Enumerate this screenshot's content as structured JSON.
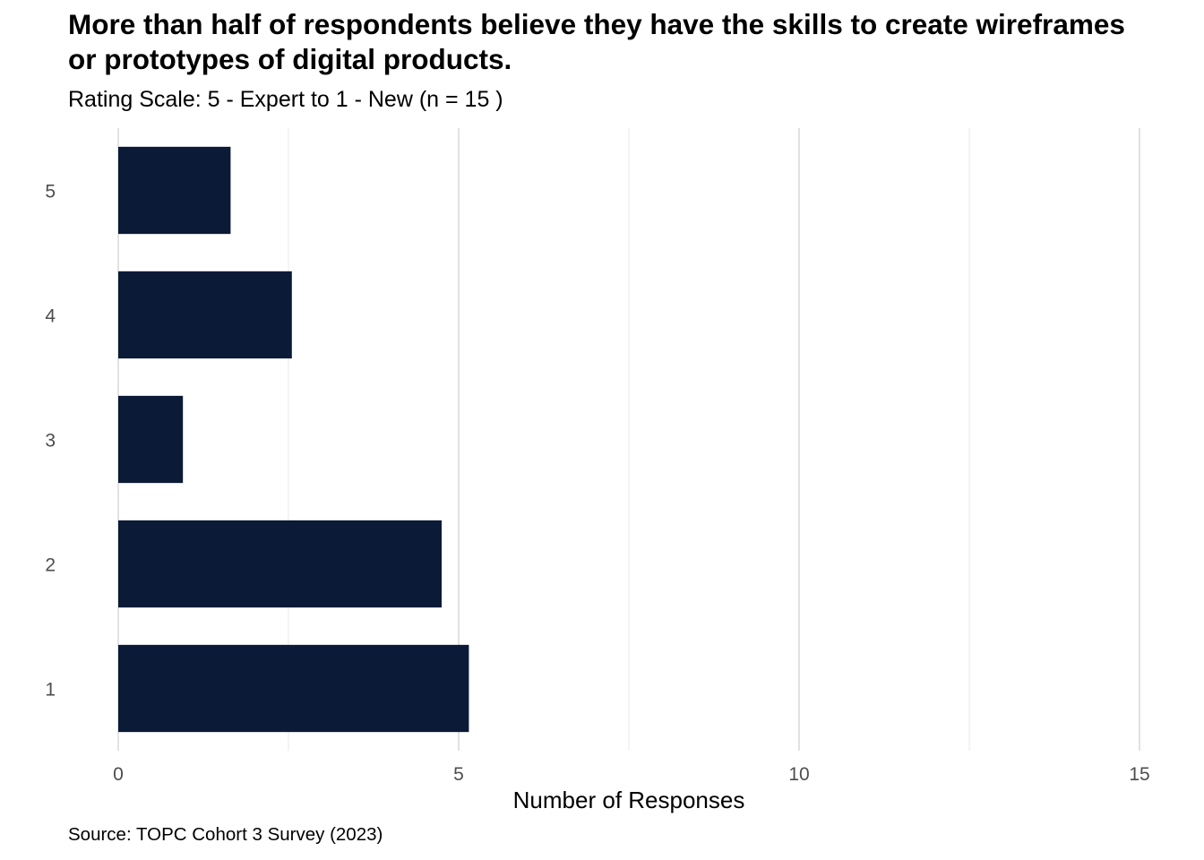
{
  "title": "More than half of respondents believe they have the skills to create wireframes or prototypes of digital products.",
  "subtitle": "Rating Scale: 5 - Expert to 1 - New (n = 15 )",
  "caption": "Source: TOPC Cohort 3 Survey (2023)",
  "chart_data": {
    "type": "bar",
    "orientation": "horizontal",
    "categories": [
      "5",
      "4",
      "3",
      "2",
      "1"
    ],
    "values": [
      1.65,
      2.55,
      0.95,
      4.75,
      5.15
    ],
    "xlabel": "Number of Responses",
    "ylabel": "",
    "xlim": [
      0,
      15
    ],
    "xticks": [
      "0",
      "5",
      "10",
      "15"
    ],
    "bar_color": "#0b1a36",
    "grid": true,
    "legend": "none"
  }
}
